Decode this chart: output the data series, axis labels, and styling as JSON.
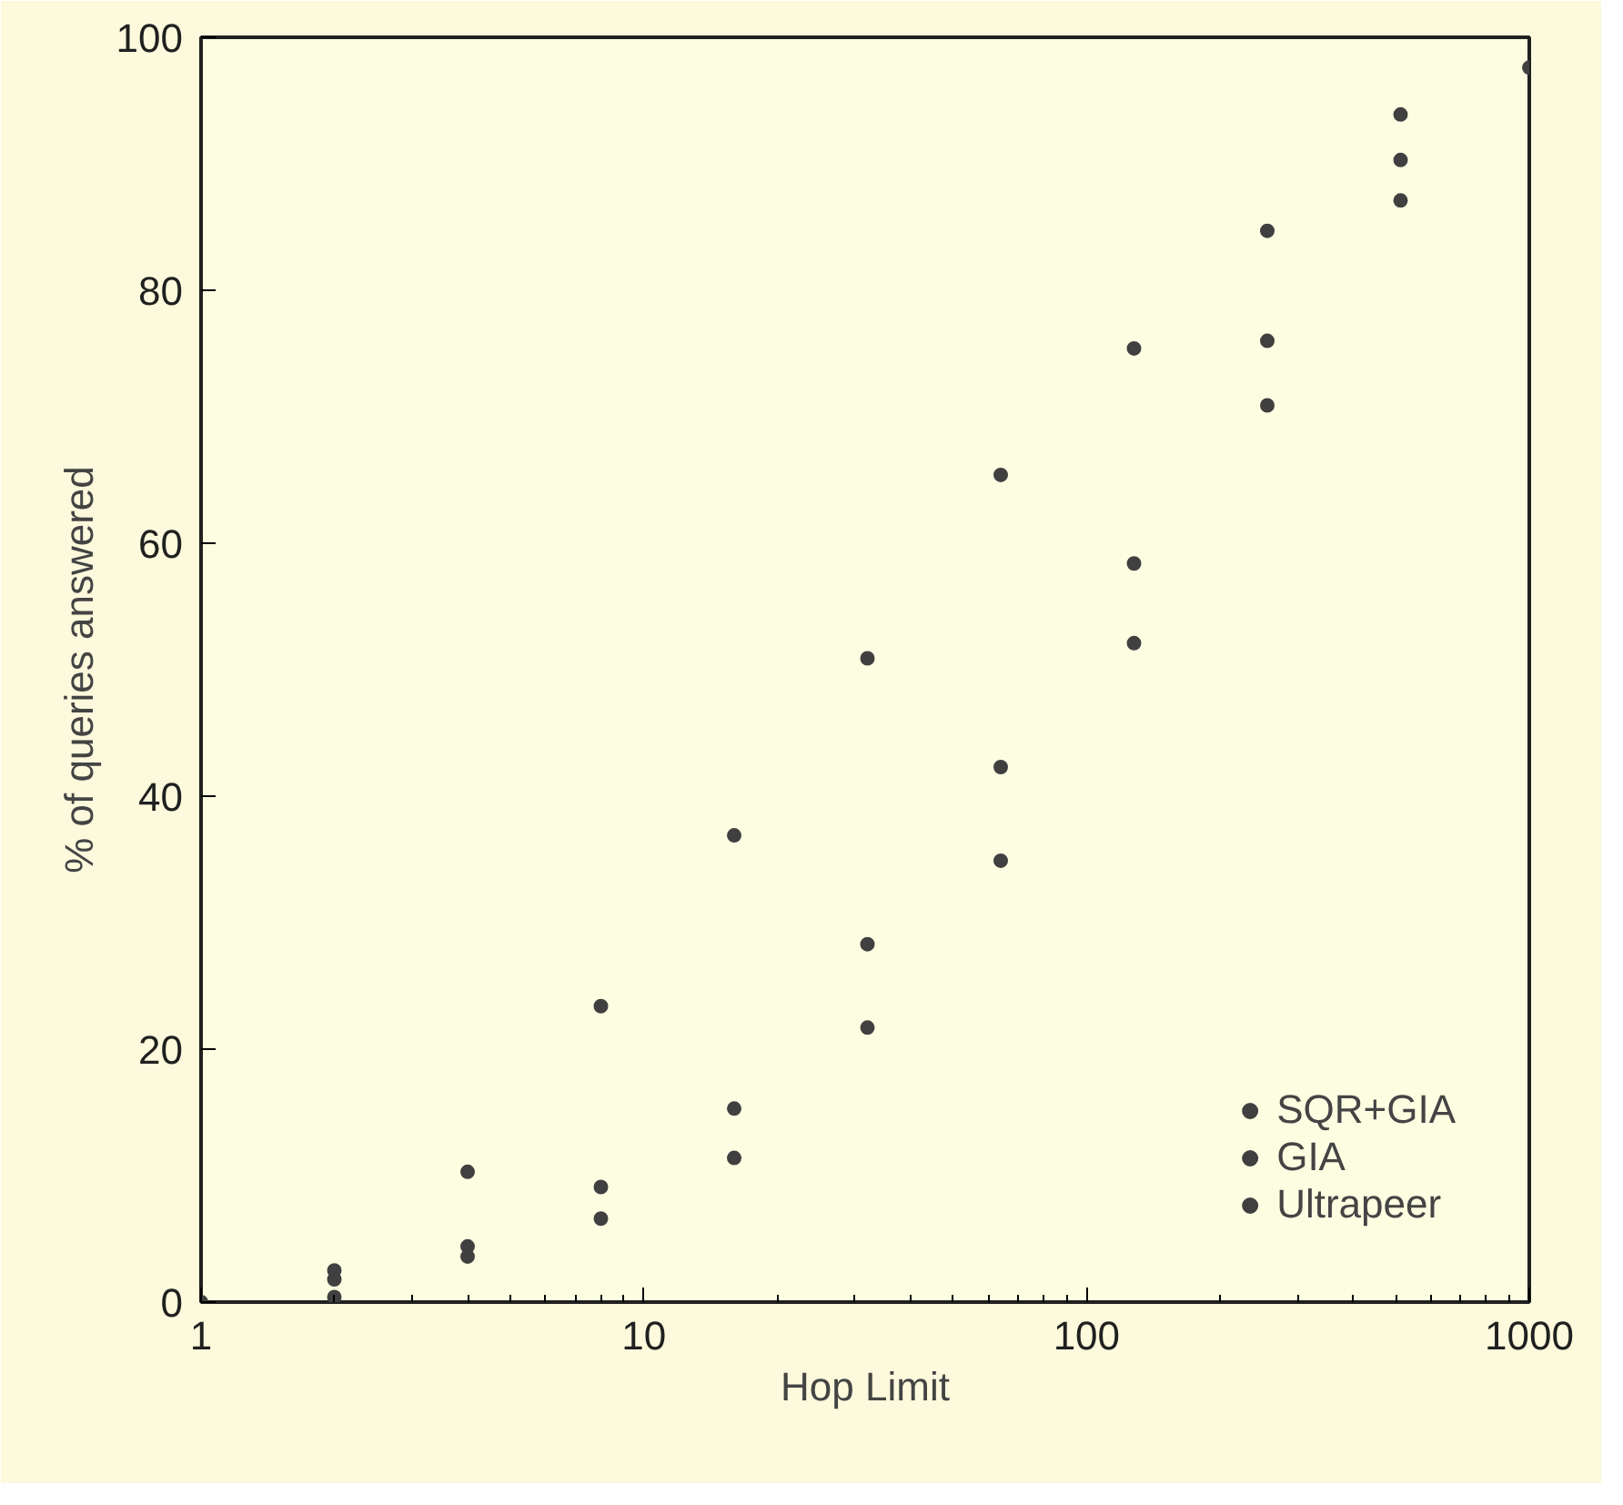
{
  "chart_data": {
    "type": "scatter",
    "xlabel": "Hop Limit",
    "ylabel": "% of queries answered",
    "series": [
      {
        "name": "SQR+GIA",
        "color": "#404040",
        "x": [
          1,
          2,
          4,
          8,
          16,
          32,
          64,
          128,
          256,
          512,
          1000
        ],
        "values": [
          0,
          2.5,
          10.3,
          23.4,
          36.9,
          50.9,
          65.4,
          75.4,
          84.7,
          93.9,
          97.6
        ]
      },
      {
        "name": "GIA",
        "color": "#404040",
        "x": [
          2,
          4,
          8,
          16,
          32,
          64,
          128,
          256,
          512
        ],
        "values": [
          1.8,
          4.4,
          9.1,
          15.3,
          28.3,
          42.3,
          58.4,
          76,
          90.3
        ]
      },
      {
        "name": "Ultrapeer",
        "color": "#404040",
        "x": [
          2,
          4,
          8,
          16,
          32,
          64,
          128,
          256,
          512
        ],
        "values": [
          0.4,
          3.6,
          6.6,
          11.4,
          21.7,
          34.9,
          52.1,
          70.9,
          87.1
        ]
      }
    ],
    "marker": "circle",
    "log": "x",
    "xlim": [
      1,
      1000
    ],
    "xticks": [
      1,
      10,
      100,
      1000
    ],
    "ylim": [
      0,
      100
    ],
    "yticks": [
      0,
      20,
      40,
      60,
      80,
      100
    ],
    "grid": false,
    "legend": "bottom right"
  }
}
